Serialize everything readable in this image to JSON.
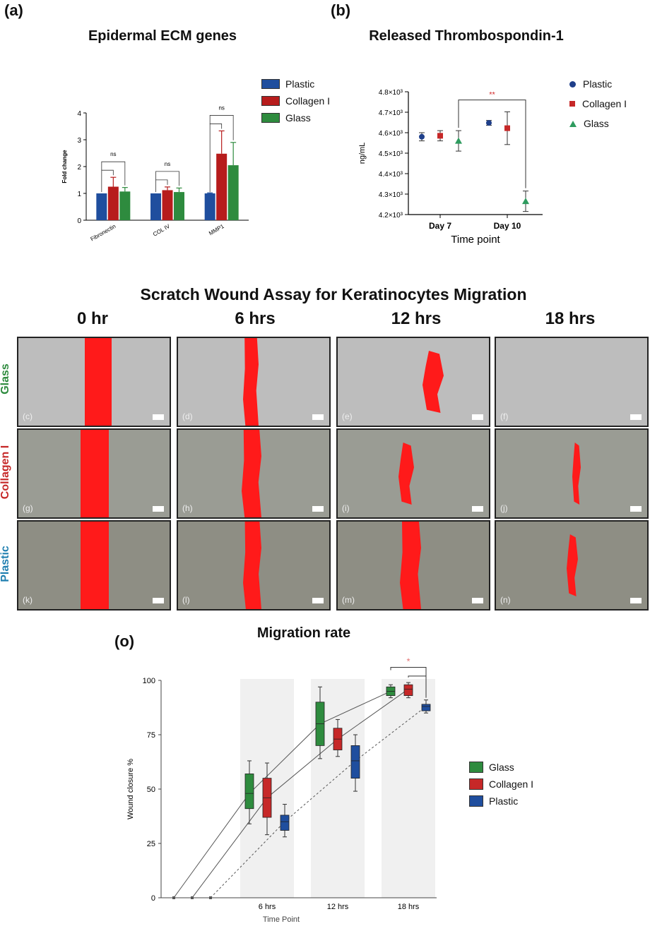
{
  "panel_a": {
    "letter": "(a)",
    "legend": [
      {
        "label": "Plastic",
        "color": "#1f4e9e"
      },
      {
        "label": "Collagen I",
        "color": "#b71c1c"
      },
      {
        "label": "Glass",
        "color": "#2e8b3e"
      }
    ]
  },
  "panel_b": {
    "letter": "(b)",
    "legend": [
      {
        "label": "Plastic",
        "color": "#1f3f8a",
        "marker": "circle"
      },
      {
        "label": "Collagen I",
        "color": "#c62828",
        "marker": "square"
      },
      {
        "label": "Glass",
        "color": "#2e9b5e",
        "marker": "triangle"
      }
    ]
  },
  "scratch": {
    "title": "Scratch Wound Assay for Keratinocytes Migration",
    "columns": [
      "0 hr",
      "6 hrs",
      "12 hrs",
      "18 hrs"
    ],
    "rows": [
      {
        "label": "Glass",
        "color": "#2e8b3e",
        "tiles": [
          "(c)",
          "(d)",
          "(e)",
          "(f)"
        ],
        "bg": "#bdbdbd"
      },
      {
        "label": "Collagen I",
        "color": "#c62828",
        "tiles": [
          "(g)",
          "(h)",
          "(i)",
          "(j)"
        ],
        "bg": "#9a9c94"
      },
      {
        "label": "Plastic",
        "color": "#1f7fb0",
        "tiles": [
          "(k)",
          "(l)",
          "(m)",
          "(n)"
        ],
        "bg": "#8e8e84"
      }
    ]
  },
  "panel_o": {
    "letter": "(o)",
    "legend": [
      {
        "label": "Glass",
        "color": "#2e8b3e"
      },
      {
        "label": "Collagen I",
        "color": "#c62828"
      },
      {
        "label": "Plastic",
        "color": "#1f4e9e"
      }
    ]
  },
  "chart_data": [
    {
      "type": "bar",
      "title": "Epidermal ECM genes",
      "ylabel": "Fold change",
      "xlabel": "",
      "ylim": [
        0,
        4
      ],
      "yticks": [
        0,
        1,
        2,
        3,
        4
      ],
      "categories": [
        "Fibronectin",
        "COL IV",
        "MMP1"
      ],
      "series": [
        {
          "name": "Plastic",
          "values": [
            1.0,
            1.0,
            1.0
          ],
          "errors": [
            0.0,
            0.0,
            0.02
          ]
        },
        {
          "name": "Collagen I",
          "values": [
            1.25,
            1.12,
            2.48
          ],
          "errors": [
            0.35,
            0.12,
            0.85
          ]
        },
        {
          "name": "Glass",
          "values": [
            1.07,
            1.05,
            2.05
          ],
          "errors": [
            0.15,
            0.15,
            0.85
          ]
        }
      ],
      "annotations": [
        "ns",
        "ns",
        "ns"
      ]
    },
    {
      "type": "scatter",
      "title": "Released Thrombospondin-1",
      "ylabel": "ng/mL",
      "xlabel": "Time point",
      "categories": [
        "Day 7",
        "Day 10"
      ],
      "ylim": [
        4200,
        4800
      ],
      "ytick_labels": [
        "4.2×10³",
        "4.3×10³",
        "4.4×10³",
        "4.5×10³",
        "4.6×10³",
        "4.7×10³",
        "4.8×10³"
      ],
      "series": [
        {
          "name": "Plastic",
          "values": [
            4580,
            4648
          ],
          "errors": [
            20,
            12
          ]
        },
        {
          "name": "Collagen I",
          "values": [
            4585,
            4622
          ],
          "errors": [
            25,
            80
          ]
        },
        {
          "name": "Glass",
          "values": [
            4560,
            4265
          ],
          "errors": [
            50,
            50
          ]
        }
      ],
      "annotations": [
        "**"
      ]
    },
    {
      "type": "box",
      "title": "Migration rate",
      "ylabel": "Wound closure %",
      "xlabel": "Time Point",
      "categories": [
        "6 hrs",
        "12 hrs",
        "18 hrs"
      ],
      "ylim": [
        0,
        100
      ],
      "yticks": [
        0,
        25,
        50,
        75,
        100
      ],
      "series": [
        {
          "name": "Glass",
          "boxes": [
            {
              "min": 34,
              "q1": 41,
              "median": 48,
              "q3": 57,
              "max": 63
            },
            {
              "min": 64,
              "q1": 70,
              "median": 80,
              "q3": 90,
              "max": 97
            },
            {
              "min": 92,
              "q1": 93,
              "median": 95,
              "q3": 97,
              "max": 98
            }
          ]
        },
        {
          "name": "Collagen I",
          "boxes": [
            {
              "min": 29,
              "q1": 37,
              "median": 46,
              "q3": 55,
              "max": 62
            },
            {
              "min": 65,
              "q1": 68,
              "median": 73,
              "q3": 78,
              "max": 82
            },
            {
              "min": 92,
              "q1": 93,
              "median": 96,
              "q3": 98,
              "max": 99
            }
          ]
        },
        {
          "name": "Plastic",
          "boxes": [
            {
              "min": 28,
              "q1": 31,
              "median": 35,
              "q3": 38,
              "max": 43
            },
            {
              "min": 49,
              "q1": 55,
              "median": 63,
              "q3": 70,
              "max": 75
            },
            {
              "min": 85,
              "q1": 86,
              "median": 88,
              "q3": 89,
              "max": 91
            }
          ]
        }
      ],
      "annotations": [
        "*"
      ]
    }
  ]
}
